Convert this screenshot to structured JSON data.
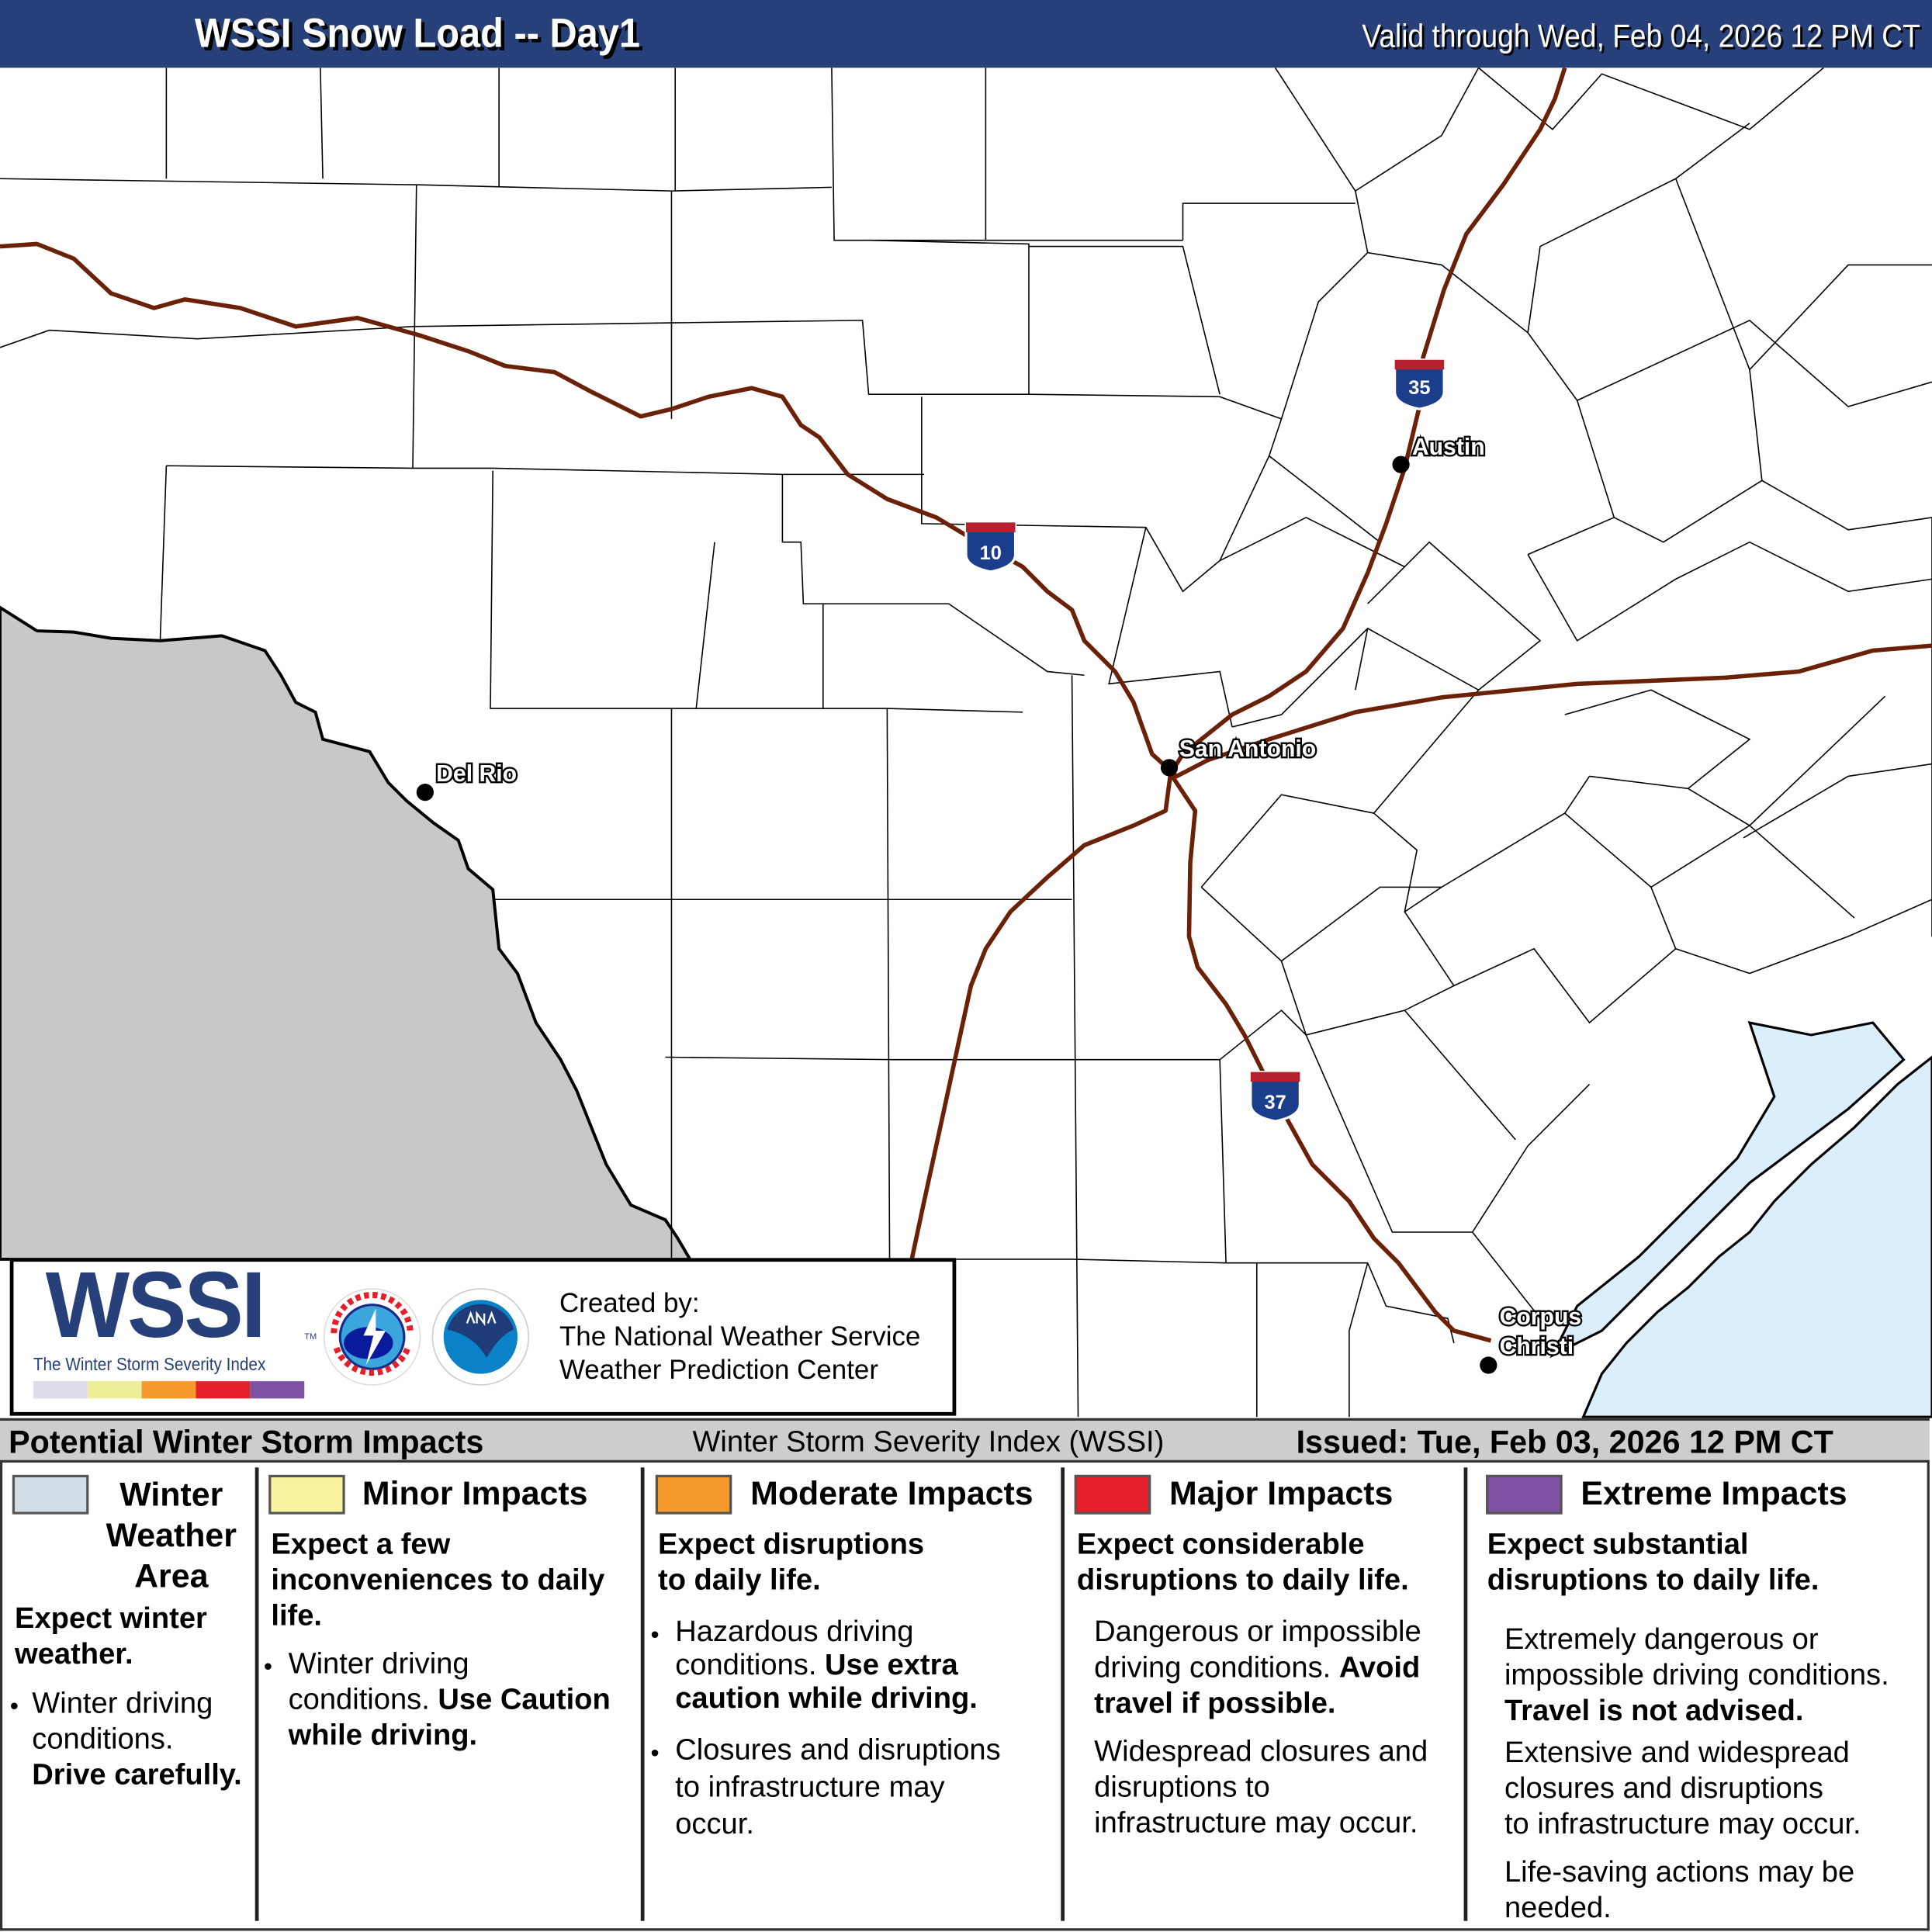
{
  "header": {
    "title": "WSSI Snow Load -- Day1",
    "valid": "Valid through Wed, Feb 04, 2026 12 PM CT"
  },
  "map": {
    "colors": {
      "outside_area": "#c8c8c8",
      "water": "#dbeefb",
      "highway": "#6b2008",
      "county_line": "#000000"
    },
    "highway_shields": [
      {
        "label": "35"
      },
      {
        "label": "10"
      },
      {
        "label": "37"
      }
    ],
    "cities": [
      {
        "name": "Del Rio"
      },
      {
        "name": "San Antonio"
      },
      {
        "name": "Austin"
      },
      {
        "name": "Corpus"
      },
      {
        "name": "Christi"
      }
    ]
  },
  "logo": {
    "wssi": "WSSI",
    "tm": "TM",
    "subtitle": "The Winter Storm Severity Index",
    "ramp": [
      "#dcdcea",
      "#eeee99",
      "#f6992d",
      "#e5202a",
      "#7d52a3"
    ],
    "created_by": "Created by:",
    "org1": "The National Weather Service",
    "org2": "Weather Prediction Center"
  },
  "bar": {
    "left": "Potential Winter Storm Impacts",
    "middle": "Winter Storm Severity Index (WSSI)",
    "right": "Issued: Tue, Feb 03, 2026 12 PM CT"
  },
  "legend": [
    {
      "color": "#d3dfe8",
      "title1": "Winter",
      "title2": "Weather",
      "title3": "Area",
      "summary1": "Expect winter",
      "summary2": "weather.",
      "b1a": "Winter driving",
      "b1b": "conditions.",
      "b1c": "Drive carefully."
    },
    {
      "color": "#f8f4a0",
      "title": "Minor Impacts",
      "summary1": "Expect a few",
      "summary2": "inconveniences to daily",
      "summary3": "life.",
      "b1a": "Winter driving",
      "b1b": "conditions. ",
      "b1c": "Use Caution",
      "b1d": "while driving."
    },
    {
      "color": "#f6992d",
      "title": "Moderate Impacts",
      "summary1": "Expect disruptions",
      "summary2": "to daily life.",
      "b1a": "Hazardous driving",
      "b1b": "conditions. ",
      "b1c": "Use extra",
      "b1d": "caution while driving.",
      "b2a": "Closures and disruptions",
      "b2b": "to infrastructure may",
      "b2c": "occur."
    },
    {
      "color": "#e5202a",
      "title": "Major Impacts",
      "summary1": "Expect considerable",
      "summary2": "disruptions to daily life.",
      "p1a": "Dangerous or impossible",
      "p1b": "driving conditions. ",
      "p1c": "Avoid",
      "p1d": "travel if possible.",
      "p2a": "Widespread closures and",
      "p2b": "disruptions to",
      "p2c": "infrastructure may occur."
    },
    {
      "color": "#7d52a3",
      "title": "Extreme Impacts",
      "summary1": "Expect substantial",
      "summary2": "disruptions to daily life.",
      "p1a": "Extremely dangerous or",
      "p1b": "impossible driving conditions.",
      "p1c": "Travel is not advised.",
      "p2a": "Extensive and widespread",
      "p2b": "closures and disruptions",
      "p2c": "to infrastructure may occur.",
      "p3a": "Life-saving actions may be",
      "p3b": "needed."
    }
  ]
}
